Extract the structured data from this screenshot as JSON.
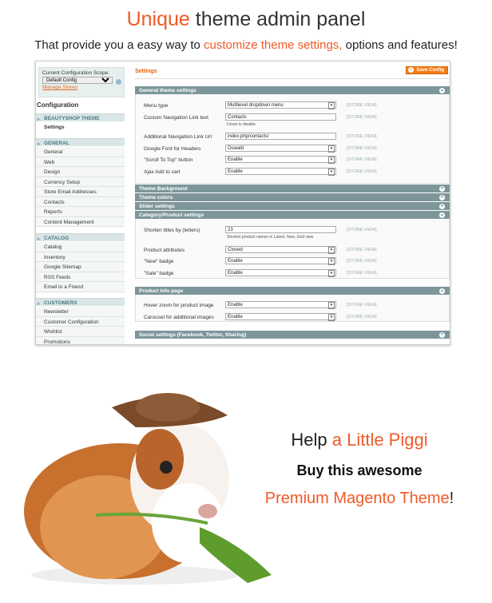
{
  "headline": {
    "accent": "Unique",
    "rest": " theme admin panel"
  },
  "subline": {
    "before": "That provide you a easy way to ",
    "accent": "customize theme settings,",
    "after": " options and features!"
  },
  "sidebar": {
    "scope_label": "Current Configuration Scope:",
    "scope_value": "Default Config",
    "manage_stores": "Manage Stores",
    "configuration": "Configuration",
    "groups": [
      {
        "label": "BEAUTYSHOP THEME",
        "items": [
          "Settings"
        ]
      },
      {
        "label": "GENERAL",
        "items": [
          "General",
          "Web",
          "Design",
          "Currency Setup",
          "Store Email Addresses",
          "Contacts",
          "Reports",
          "Content Management"
        ]
      },
      {
        "label": "CATALOG",
        "items": [
          "Catalog",
          "Inventory",
          "Google Sitemap",
          "RSS Feeds",
          "Email to a Friend"
        ]
      },
      {
        "label": "CUSTOMERS",
        "items": [
          "Newsletter",
          "Customer Configuration",
          "Wishlist",
          "Promotions"
        ]
      }
    ]
  },
  "main": {
    "title": "Settings",
    "save_label": "Save Config",
    "scope_tag": "[STORE VIEW]",
    "general": {
      "title": "General theme settings",
      "rows": [
        {
          "label": "Menu type",
          "value": "Multilevel dropdown menu",
          "type": "select"
        },
        {
          "label": "Custom Navigation Link text",
          "value": "Contacts",
          "type": "text",
          "note": "Unset to disable"
        },
        {
          "label": "Additional Navigation Link Url",
          "value": "index.php/contacts/",
          "type": "text"
        },
        {
          "label": "Google Font for Headers",
          "value": "Oswald",
          "type": "select"
        },
        {
          "label": "\"Scroll To Top\" button",
          "value": "Enable",
          "type": "select"
        },
        {
          "label": "Ajax Add to cart",
          "value": "Enable",
          "type": "select"
        }
      ]
    },
    "collapsed": [
      "Theme Background",
      "Theme colors",
      "Slider settings"
    ],
    "category": {
      "title": "Category/Product settings",
      "rows": [
        {
          "label": "Shorten titles by (letters)",
          "value": "23",
          "type": "text",
          "note": "Shorten product names in Latest, New, Grid view"
        },
        {
          "label": "Product attributes",
          "value": "Closed",
          "type": "select"
        },
        {
          "label": "\"New\" badge",
          "value": "Enable",
          "type": "select"
        },
        {
          "label": "\"Sale\" badge",
          "value": "Enable",
          "type": "select"
        }
      ]
    },
    "product": {
      "title": "Product info page",
      "rows": [
        {
          "label": "Hover zoom for product image",
          "value": "Enable",
          "type": "select"
        },
        {
          "label": "Carousel for additional images",
          "value": "Enable",
          "type": "select"
        }
      ]
    },
    "social": {
      "title": "Social settings (Facebook, Twitter, Sharing)"
    }
  },
  "promo": {
    "line1_before": "Help ",
    "line1_accent": "a Little Piggi",
    "line2": "Buy this awesome",
    "line3_accent": "Premium Magento Theme",
    "line3_after": "!"
  },
  "colors": {
    "accent": "#f05a28",
    "section_header": "#7d969b",
    "save_button": "#f77c16"
  }
}
